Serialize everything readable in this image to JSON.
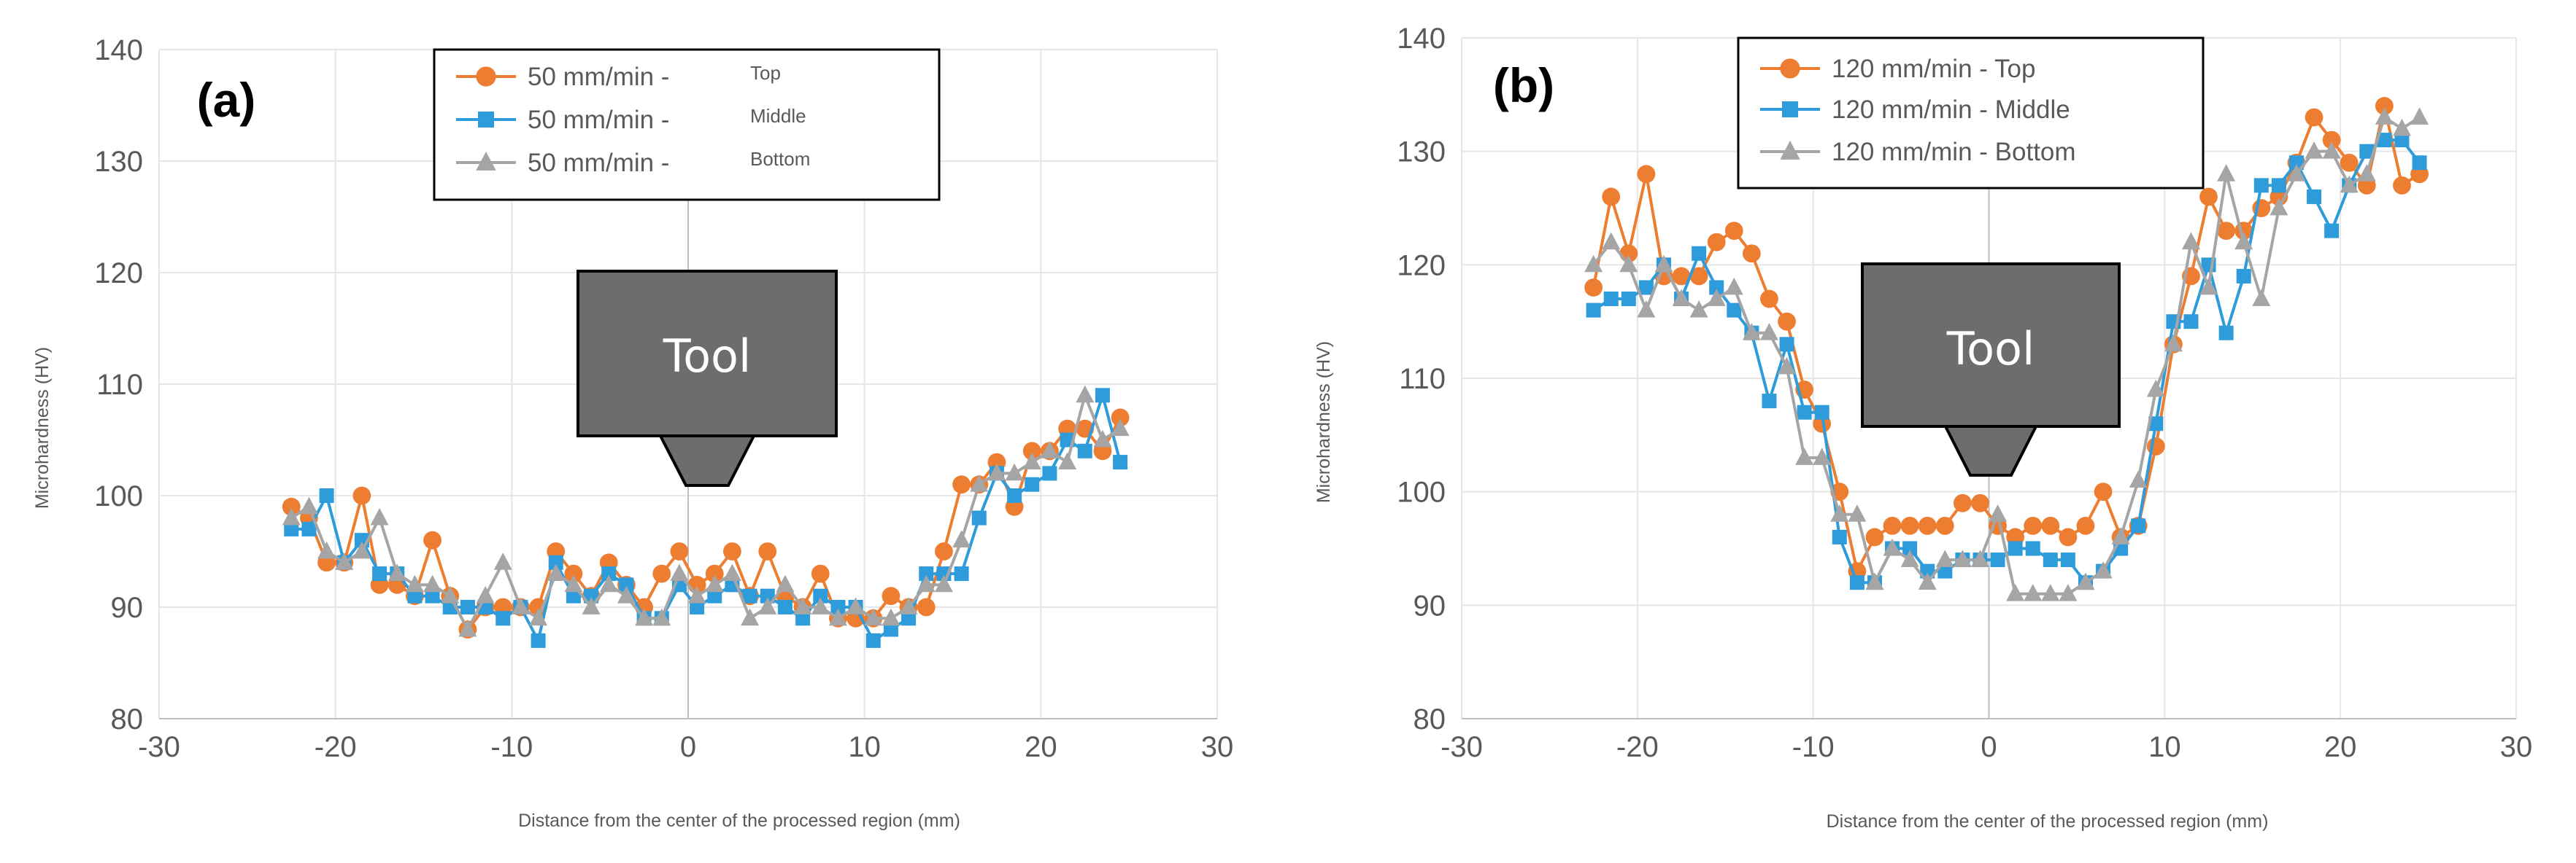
{
  "chart_data": [
    {
      "type": "line",
      "panel_label": "(a)",
      "title": "",
      "xlabel": "Distance from the center of the processed region (mm)",
      "ylabel": "Microhardness (HV)",
      "xlim": [
        -30,
        30
      ],
      "ylim": [
        80,
        140
      ],
      "xticks": [
        "-30",
        "-20",
        "-10",
        "0",
        "10",
        "20",
        "30"
      ],
      "yticks": [
        "80",
        "90",
        "100",
        "110",
        "120",
        "130",
        "140"
      ],
      "legend_position": "top-center",
      "annotation": "Tool",
      "x": [
        -22.5,
        -21.5,
        -20.5,
        -19.5,
        -18.5,
        -17.5,
        -16.5,
        -15.5,
        -14.5,
        -13.5,
        -12.5,
        -11.5,
        -10.5,
        -9.5,
        -8.5,
        -7.5,
        -6.5,
        -5.5,
        -4.5,
        -3.5,
        -2.5,
        -1.5,
        -0.5,
        0.5,
        1.5,
        2.5,
        3.5,
        4.5,
        5.5,
        6.5,
        7.5,
        8.5,
        9.5,
        10.5,
        11.5,
        12.5,
        13.5,
        14.5,
        15.5,
        16.5,
        17.5,
        18.5,
        19.5,
        20.5,
        21.5,
        22.5,
        23.5,
        24.5
      ],
      "series": [
        {
          "name": "50 mm/min -",
          "suffix": "Top",
          "color": "#ED7D31",
          "marker": "circle",
          "values": [
            99,
            98,
            94,
            94,
            100,
            92,
            92,
            91,
            96,
            91,
            88,
            90,
            90,
            90,
            90,
            95,
            93,
            91,
            94,
            92,
            90,
            93,
            95,
            92,
            93,
            95,
            91,
            95,
            91,
            90,
            93,
            89,
            89,
            89,
            91,
            90,
            90,
            95,
            101,
            101,
            103,
            99,
            104,
            104,
            106,
            106,
            104,
            107
          ]
        },
        {
          "name": "50 mm/min -",
          "suffix": "Middle",
          "color": "#2E9BDA",
          "marker": "square",
          "values": [
            97,
            97,
            100,
            94,
            96,
            93,
            93,
            91,
            91,
            90,
            90,
            90,
            89,
            90,
            87,
            94,
            91,
            91,
            93,
            92,
            89,
            89,
            92,
            90,
            91,
            92,
            91,
            91,
            90,
            89,
            91,
            90,
            90,
            87,
            88,
            89,
            93,
            93,
            93,
            98,
            102,
            100,
            101,
            102,
            105,
            104,
            109,
            103
          ]
        },
        {
          "name": "50 mm/min -",
          "suffix": "Bottom",
          "color": "#A5A5A5",
          "marker": "triangle",
          "values": [
            98,
            99,
            95,
            94,
            95,
            98,
            93,
            92,
            92,
            91,
            88,
            91,
            94,
            90,
            89,
            93,
            92,
            90,
            92,
            91,
            89,
            89,
            93,
            91,
            92,
            93,
            89,
            90,
            92,
            90,
            90,
            89,
            90,
            89,
            89,
            90,
            92,
            92,
            96,
            101,
            102,
            102,
            103,
            104,
            103,
            109,
            105,
            106
          ]
        }
      ]
    },
    {
      "type": "line",
      "panel_label": "(b)",
      "title": "",
      "xlabel": "Distance from the center of the processed region (mm)",
      "ylabel": "Microhardness (HV)",
      "xlim": [
        -30,
        30
      ],
      "ylim": [
        80,
        140
      ],
      "xticks": [
        "-30",
        "-20",
        "-10",
        "0",
        "10",
        "20",
        "30"
      ],
      "yticks": [
        "80",
        "90",
        "100",
        "110",
        "120",
        "130",
        "140"
      ],
      "legend_position": "top-left",
      "annotation": "Tool",
      "x": [
        -22.5,
        -21.5,
        -20.5,
        -19.5,
        -18.5,
        -17.5,
        -16.5,
        -15.5,
        -14.5,
        -13.5,
        -12.5,
        -11.5,
        -10.5,
        -9.5,
        -8.5,
        -7.5,
        -6.5,
        -5.5,
        -4.5,
        -3.5,
        -2.5,
        -1.5,
        -0.5,
        0.5,
        1.5,
        2.5,
        3.5,
        4.5,
        5.5,
        6.5,
        7.5,
        8.5,
        9.5,
        10.5,
        11.5,
        12.5,
        13.5,
        14.5,
        15.5,
        16.5,
        17.5,
        18.5,
        19.5,
        20.5,
        21.5,
        22.5,
        23.5,
        24.5
      ],
      "series": [
        {
          "name": "120 mm/min - Top",
          "suffix": "",
          "color": "#ED7D31",
          "marker": "circle",
          "values": [
            118,
            126,
            121,
            128,
            119,
            119,
            119,
            122,
            123,
            121,
            117,
            115,
            109,
            106,
            100,
            93,
            96,
            97,
            97,
            97,
            97,
            99,
            99,
            97,
            96,
            97,
            97,
            96,
            97,
            100,
            96,
            97,
            104,
            113,
            119,
            126,
            123,
            123,
            125,
            126,
            129,
            133,
            131,
            129,
            127,
            134,
            127,
            128
          ]
        },
        {
          "name": "120 mm/min - Middle",
          "suffix": "",
          "color": "#2E9BDA",
          "marker": "square",
          "values": [
            116,
            117,
            117,
            118,
            120,
            117,
            121,
            118,
            116,
            114,
            108,
            113,
            107,
            107,
            96,
            92,
            92,
            95,
            95,
            93,
            93,
            94,
            94,
            94,
            95,
            95,
            94,
            94,
            92,
            93,
            95,
            97,
            106,
            115,
            115,
            120,
            114,
            119,
            127,
            127,
            129,
            126,
            123,
            127,
            130,
            131,
            131,
            129
          ]
        },
        {
          "name": "120 mm/min - Bottom",
          "suffix": "",
          "color": "#A5A5A5",
          "marker": "triangle",
          "values": [
            120,
            122,
            120,
            116,
            120,
            117,
            116,
            117,
            118,
            114,
            114,
            111,
            103,
            103,
            98,
            98,
            92,
            95,
            94,
            92,
            94,
            94,
            94,
            98,
            91,
            91,
            91,
            91,
            92,
            93,
            96,
            101,
            109,
            113,
            122,
            118,
            128,
            122,
            117,
            125,
            128,
            130,
            130,
            127,
            128,
            133,
            132,
            133
          ]
        }
      ]
    }
  ]
}
